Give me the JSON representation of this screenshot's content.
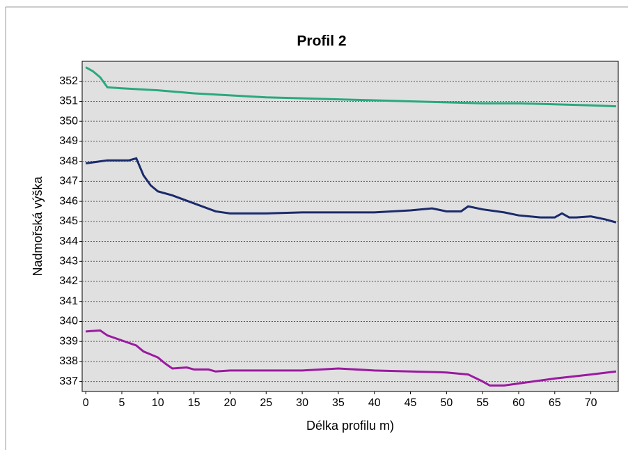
{
  "chart_data": {
    "type": "line",
    "title": "Profil 2",
    "x_label": "Délka profilu m)",
    "y_label": "Nadmořská výška",
    "xlim": [
      -0.5,
      73.8
    ],
    "xticks": [
      0,
      5,
      10,
      15,
      20,
      25,
      30,
      35,
      40,
      45,
      50,
      55,
      60,
      65,
      70
    ],
    "ylim": [
      336.5,
      353
    ],
    "yticks": [
      337,
      338,
      339,
      340,
      341,
      342,
      343,
      344,
      345,
      346,
      347,
      348,
      349,
      350,
      351,
      352
    ],
    "grid": true,
    "series": [
      {
        "color": "#2aa87f",
        "x": [
          0,
          1,
          2,
          3,
          5,
          10,
          15,
          20,
          25,
          30,
          35,
          40,
          45,
          50,
          55,
          60,
          65,
          70,
          73.5
        ],
        "values": [
          352.7,
          352.5,
          352.2,
          351.7,
          351.65,
          351.55,
          351.4,
          351.3,
          351.2,
          351.15,
          351.1,
          351.05,
          351.0,
          350.95,
          350.9,
          350.9,
          350.85,
          350.8,
          350.75
        ]
      },
      {
        "color": "#1a2a6c",
        "x": [
          0,
          2,
          3,
          6,
          7,
          8,
          9,
          10,
          12,
          15,
          18,
          20,
          25,
          30,
          35,
          40,
          45,
          48,
          50,
          52,
          53,
          55,
          58,
          60,
          63,
          65,
          66,
          67,
          68,
          70,
          72,
          73.5
        ],
        "values": [
          347.9,
          348,
          348.05,
          348.05,
          348.15,
          347.3,
          346.8,
          346.5,
          346.3,
          345.9,
          345.5,
          345.4,
          345.4,
          345.45,
          345.45,
          345.45,
          345.55,
          345.65,
          345.5,
          345.5,
          345.75,
          345.6,
          345.45,
          345.3,
          345.2,
          345.2,
          345.4,
          345.2,
          345.2,
          345.25,
          345.1,
          344.95
        ]
      },
      {
        "color": "#9a1aa0",
        "x": [
          0,
          2,
          3,
          5,
          7,
          8,
          10,
          11,
          12,
          14,
          15,
          17,
          18,
          20,
          25,
          30,
          35,
          40,
          45,
          50,
          53,
          55,
          56,
          58,
          60,
          65,
          70,
          73.5
        ],
        "values": [
          339.5,
          339.55,
          339.3,
          339.05,
          338.8,
          338.5,
          338.2,
          337.9,
          337.65,
          337.7,
          337.6,
          337.6,
          337.5,
          337.55,
          337.55,
          337.55,
          337.65,
          337.55,
          337.5,
          337.45,
          337.35,
          337.0,
          336.8,
          336.8,
          336.9,
          337.15,
          337.35,
          337.5
        ]
      }
    ]
  }
}
